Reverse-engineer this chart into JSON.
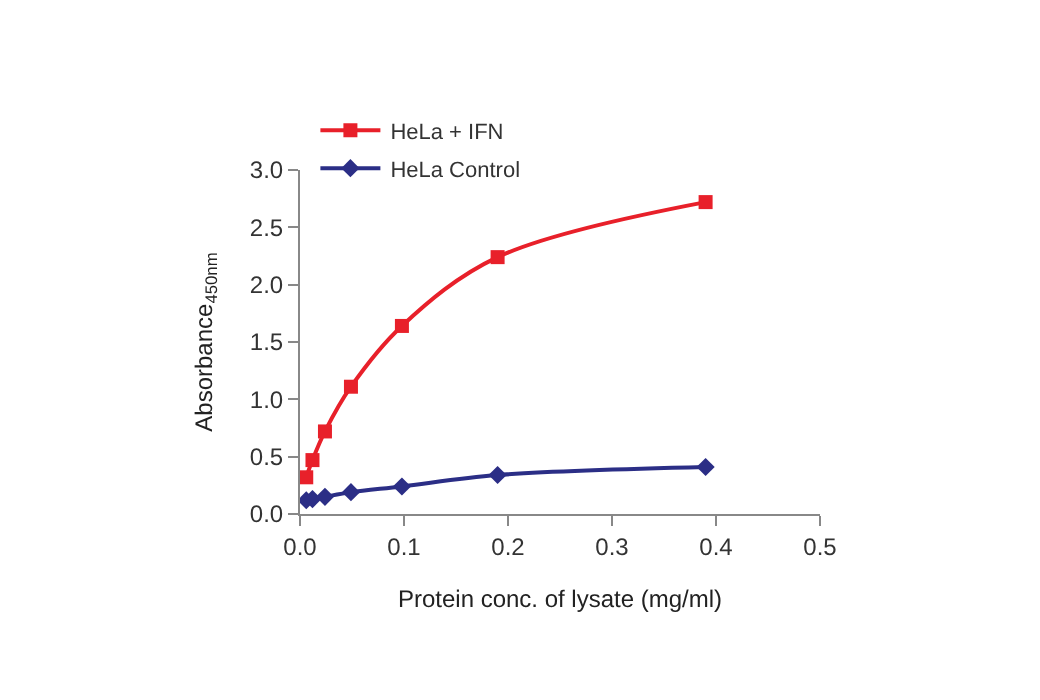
{
  "chart_data": {
    "type": "line",
    "xlabel": "Protein conc. of lysate (mg/ml)",
    "ylabel": "Absorbance$_{450nm}$",
    "xlim": [
      0,
      0.5
    ],
    "xticks": [
      {
        "value": 0,
        "label": "0.0"
      },
      0.1,
      0.2,
      0.3,
      0.4,
      0.5
    ],
    "ylim": [
      0,
      3
    ],
    "yticks": [
      {
        "value": 0,
        "label": "0.0"
      },
      0.5,
      {
        "value": 1,
        "label": "1.0"
      },
      1.5,
      {
        "value": 2,
        "label": "2.0"
      },
      2.5,
      {
        "value": 3,
        "label": "3.0"
      }
    ],
    "grid": false,
    "legend": "top left",
    "line_style": "solid",
    "x": [
      0.006,
      0.012,
      0.024,
      0.049,
      0.098,
      0.19,
      0.39
    ],
    "series": [
      {
        "name": "HeLa + IFN",
        "color": "#e8202a",
        "marker": "square",
        "values": [
          0.32,
          0.47,
          0.72,
          1.11,
          1.64,
          2.24,
          2.72
        ]
      },
      {
        "name": "HeLa Control",
        "color": "#2b2e86",
        "marker": "diamond",
        "values": [
          0.12,
          0.13,
          0.15,
          0.19,
          0.24,
          0.34,
          0.41
        ]
      }
    ]
  }
}
